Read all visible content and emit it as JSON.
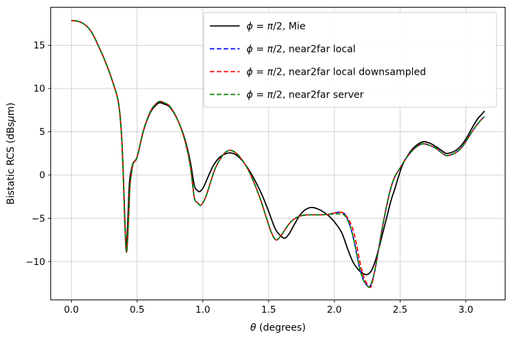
{
  "figure": {
    "background": "#ffffff",
    "grid_color": "#cccccc",
    "spine_color": "#000000",
    "legend_border_color": "#cccccc",
    "legend_background": "#ffffff"
  },
  "chart_data": {
    "type": "line",
    "title": "",
    "xlabel": "θ (degrees)",
    "ylabel": "Bistatic RCS (dBsμm)",
    "xlim": [
      -0.157,
      3.299
    ],
    "ylim": [
      -14.44,
      19.39
    ],
    "xticks": [
      0.0,
      0.5,
      1.0,
      1.5,
      2.0,
      2.5,
      3.0
    ],
    "yticks": [
      -10,
      -5,
      0,
      5,
      10,
      15
    ],
    "grid": true,
    "legend_position": "upper right",
    "series": [
      {
        "label": "ϕ = π/2, Mie",
        "color": "#000000",
        "style": "solid",
        "x": [
          0.0,
          0.04,
          0.08,
          0.12,
          0.16,
          0.2,
          0.25,
          0.3,
          0.35,
          0.37,
          0.383,
          0.392,
          0.4,
          0.407,
          0.414,
          0.423,
          0.432,
          0.441,
          0.452,
          0.47,
          0.5,
          0.55,
          0.6,
          0.635,
          0.67,
          0.705,
          0.745,
          0.79,
          0.83,
          0.87,
          0.905,
          0.935,
          0.96,
          0.978,
          1.005,
          1.04,
          1.08,
          1.125,
          1.165,
          1.21,
          1.255,
          1.3,
          1.35,
          1.4,
          1.45,
          1.5,
          1.55,
          1.59,
          1.625,
          1.66,
          1.7,
          1.74,
          1.78,
          1.825,
          1.87,
          1.92,
          1.97,
          2.02,
          2.06,
          2.1,
          2.14,
          2.18,
          2.22,
          2.25,
          2.28,
          2.31,
          2.34,
          2.37,
          2.4,
          2.43,
          2.46,
          2.49,
          2.52,
          2.56,
          2.6,
          2.64,
          2.68,
          2.73,
          2.77,
          2.81,
          2.85,
          2.89,
          2.93,
          2.97,
          3.01,
          3.05,
          3.09,
          3.12,
          3.1416
        ],
        "y": [
          17.85,
          17.8,
          17.6,
          17.15,
          16.35,
          15.1,
          13.4,
          11.4,
          8.95,
          6.9,
          4.2,
          1.2,
          -2.2,
          -5.3,
          -8.3,
          -7.2,
          -4.2,
          -1.0,
          0.3,
          1.4,
          2.1,
          5.2,
          7.2,
          7.95,
          8.35,
          8.2,
          7.9,
          6.9,
          5.6,
          3.8,
          1.5,
          -1.2,
          -1.8,
          -1.9,
          -1.4,
          -0.2,
          1.1,
          2.0,
          2.4,
          2.55,
          2.3,
          1.65,
          0.6,
          -0.75,
          -2.3,
          -4.2,
          -6.2,
          -7.0,
          -7.3,
          -6.7,
          -5.6,
          -4.6,
          -4.0,
          -3.75,
          -3.9,
          -4.3,
          -4.9,
          -5.8,
          -6.8,
          -8.5,
          -10.0,
          -10.9,
          -11.4,
          -11.5,
          -11.1,
          -10.0,
          -8.4,
          -6.6,
          -4.8,
          -3.0,
          -1.6,
          -0.1,
          1.2,
          2.3,
          3.1,
          3.6,
          3.85,
          3.65,
          3.3,
          2.9,
          2.5,
          2.6,
          2.9,
          3.5,
          4.4,
          5.5,
          6.5,
          7.0,
          7.4
        ]
      },
      {
        "label": "ϕ = π/2, near2far local",
        "color": "#0000ff",
        "style": "dashed",
        "x": [
          0.0,
          0.04,
          0.08,
          0.12,
          0.16,
          0.2,
          0.25,
          0.3,
          0.35,
          0.37,
          0.383,
          0.392,
          0.4,
          0.407,
          0.418,
          0.427,
          0.436,
          0.445,
          0.456,
          0.47,
          0.5,
          0.55,
          0.6,
          0.635,
          0.67,
          0.705,
          0.745,
          0.79,
          0.83,
          0.87,
          0.905,
          0.935,
          0.96,
          0.985,
          1.02,
          1.055,
          1.09,
          1.13,
          1.17,
          1.21,
          1.255,
          1.3,
          1.35,
          1.4,
          1.44,
          1.48,
          1.52,
          1.555,
          1.59,
          1.63,
          1.67,
          1.71,
          1.75,
          1.8,
          1.85,
          1.9,
          1.95,
          2.0,
          2.04,
          2.08,
          2.12,
          2.155,
          2.19,
          2.22,
          2.25,
          2.27,
          2.3,
          2.33,
          2.36,
          2.4,
          2.43,
          2.46,
          2.5,
          2.54,
          2.58,
          2.62,
          2.67,
          2.72,
          2.77,
          2.81,
          2.85,
          2.89,
          2.93,
          2.97,
          3.01,
          3.06,
          3.1,
          3.1416
        ],
        "y": [
          17.85,
          17.8,
          17.6,
          17.15,
          16.35,
          15.1,
          13.4,
          11.4,
          8.95,
          6.85,
          4.1,
          1.0,
          -2.5,
          -5.7,
          -8.85,
          -7.6,
          -4.6,
          -1.4,
          0.1,
          1.3,
          2.1,
          5.25,
          7.3,
          8.1,
          8.5,
          8.35,
          8.0,
          6.95,
          5.55,
          3.6,
          1.0,
          -2.6,
          -3.2,
          -3.5,
          -2.6,
          -1.0,
          0.6,
          1.8,
          2.6,
          2.85,
          2.5,
          1.7,
          0.45,
          -1.3,
          -2.9,
          -4.8,
          -6.6,
          -7.5,
          -7.1,
          -6.2,
          -5.4,
          -4.95,
          -4.7,
          -4.6,
          -4.6,
          -4.6,
          -4.55,
          -4.4,
          -4.3,
          -4.55,
          -5.9,
          -8.0,
          -10.6,
          -12.1,
          -12.8,
          -12.9,
          -11.6,
          -9.2,
          -6.5,
          -3.4,
          -1.5,
          -0.2,
          0.8,
          1.8,
          2.6,
          3.2,
          3.6,
          3.45,
          3.1,
          2.65,
          2.25,
          2.35,
          2.65,
          3.2,
          4.1,
          5.3,
          6.1,
          6.75
        ]
      },
      {
        "label": "ϕ = π/2, near2far local downsampled",
        "color": "#ff0000",
        "style": "dashed",
        "x": [
          0.0,
          0.04,
          0.08,
          0.12,
          0.16,
          0.2,
          0.25,
          0.3,
          0.35,
          0.37,
          0.383,
          0.392,
          0.4,
          0.407,
          0.418,
          0.427,
          0.436,
          0.445,
          0.456,
          0.47,
          0.5,
          0.55,
          0.6,
          0.635,
          0.67,
          0.705,
          0.745,
          0.79,
          0.83,
          0.87,
          0.905,
          0.935,
          0.96,
          0.985,
          1.02,
          1.055,
          1.09,
          1.13,
          1.17,
          1.21,
          1.255,
          1.3,
          1.35,
          1.4,
          1.44,
          1.48,
          1.52,
          1.555,
          1.59,
          1.63,
          1.67,
          1.71,
          1.75,
          1.8,
          1.85,
          1.9,
          1.95,
          2.0,
          2.04,
          2.08,
          2.133,
          2.168,
          2.202,
          2.232,
          2.26,
          2.28,
          2.3,
          2.33,
          2.36,
          2.4,
          2.43,
          2.46,
          2.5,
          2.54,
          2.58,
          2.62,
          2.67,
          2.72,
          2.77,
          2.81,
          2.85,
          2.89,
          2.93,
          2.97,
          3.01,
          3.06,
          3.1,
          3.1416
        ],
        "y": [
          17.85,
          17.8,
          17.6,
          17.15,
          16.35,
          15.1,
          13.4,
          11.4,
          8.95,
          6.85,
          4.1,
          1.0,
          -2.5,
          -5.7,
          -8.85,
          -7.6,
          -4.6,
          -1.4,
          0.1,
          1.3,
          2.1,
          5.25,
          7.3,
          8.1,
          8.5,
          8.35,
          8.0,
          6.95,
          5.55,
          3.6,
          1.0,
          -2.6,
          -3.2,
          -3.5,
          -2.6,
          -1.0,
          0.6,
          1.8,
          2.6,
          2.85,
          2.5,
          1.7,
          0.45,
          -1.3,
          -2.9,
          -4.8,
          -6.6,
          -7.5,
          -7.1,
          -6.2,
          -5.4,
          -4.95,
          -4.7,
          -4.6,
          -4.6,
          -4.6,
          -4.55,
          -4.4,
          -4.3,
          -4.55,
          -5.9,
          -8.0,
          -10.6,
          -12.1,
          -12.8,
          -12.9,
          -11.6,
          -9.2,
          -6.5,
          -3.4,
          -1.5,
          -0.2,
          0.8,
          1.8,
          2.6,
          3.2,
          3.6,
          3.45,
          3.1,
          2.65,
          2.25,
          2.35,
          2.65,
          3.2,
          4.1,
          5.3,
          6.1,
          6.75
        ]
      },
      {
        "label": "ϕ = π/2, near2far server",
        "color": "#008000",
        "style": "dashed",
        "x": [
          0.0,
          0.04,
          0.08,
          0.12,
          0.16,
          0.2,
          0.25,
          0.3,
          0.35,
          0.37,
          0.383,
          0.392,
          0.4,
          0.407,
          0.418,
          0.427,
          0.436,
          0.445,
          0.456,
          0.47,
          0.5,
          0.55,
          0.6,
          0.635,
          0.67,
          0.705,
          0.745,
          0.79,
          0.83,
          0.87,
          0.905,
          0.935,
          0.96,
          0.985,
          1.02,
          1.055,
          1.09,
          1.13,
          1.17,
          1.21,
          1.255,
          1.3,
          1.35,
          1.4,
          1.44,
          1.48,
          1.52,
          1.555,
          1.59,
          1.63,
          1.67,
          1.71,
          1.75,
          1.8,
          1.85,
          1.9,
          1.95,
          2.0,
          2.04,
          2.08,
          2.12,
          2.155,
          2.19,
          2.22,
          2.25,
          2.27,
          2.3,
          2.33,
          2.36,
          2.4,
          2.43,
          2.46,
          2.5,
          2.54,
          2.58,
          2.62,
          2.67,
          2.72,
          2.77,
          2.81,
          2.85,
          2.89,
          2.93,
          2.97,
          3.01,
          3.06,
          3.1,
          3.1416
        ],
        "y": [
          17.85,
          17.8,
          17.6,
          17.15,
          16.35,
          15.1,
          13.4,
          11.4,
          8.95,
          6.85,
          4.1,
          1.0,
          -2.5,
          -5.7,
          -8.85,
          -7.6,
          -4.6,
          -1.4,
          0.1,
          1.3,
          2.1,
          5.25,
          7.3,
          8.1,
          8.5,
          8.35,
          8.0,
          6.95,
          5.55,
          3.6,
          1.0,
          -2.6,
          -3.2,
          -3.5,
          -2.6,
          -1.0,
          0.6,
          1.8,
          2.6,
          2.85,
          2.5,
          1.7,
          0.45,
          -1.3,
          -2.9,
          -4.8,
          -6.6,
          -7.5,
          -7.1,
          -6.2,
          -5.4,
          -4.95,
          -4.7,
          -4.6,
          -4.6,
          -4.6,
          -4.55,
          -4.5,
          -4.5,
          -4.7,
          -5.9,
          -8.0,
          -10.6,
          -12.1,
          -12.8,
          -12.9,
          -11.6,
          -9.2,
          -6.5,
          -3.4,
          -1.5,
          -0.2,
          0.8,
          1.8,
          2.6,
          3.2,
          3.6,
          3.45,
          3.1,
          2.65,
          2.25,
          2.35,
          2.65,
          3.2,
          4.1,
          5.3,
          6.1,
          6.75
        ]
      }
    ]
  }
}
